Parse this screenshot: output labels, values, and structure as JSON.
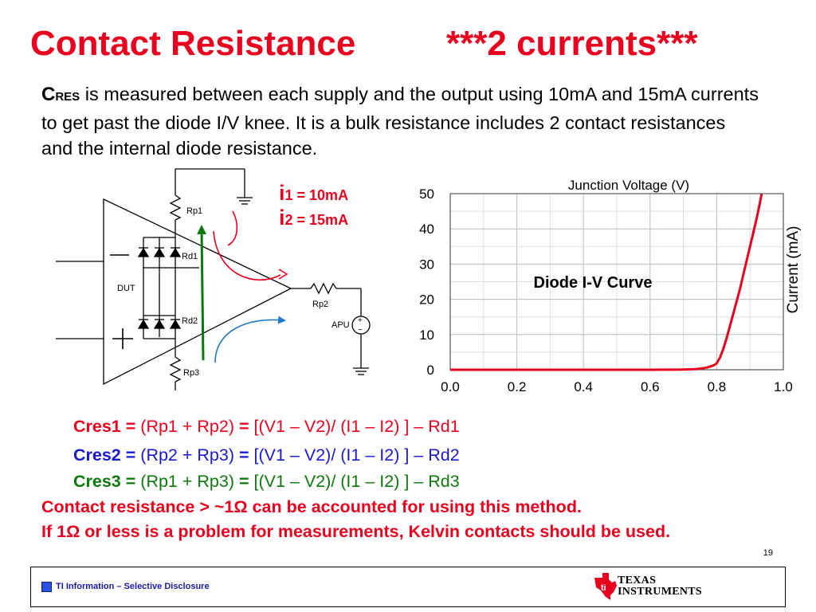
{
  "title": {
    "left": "Contact Resistance",
    "right": "***2 currents***"
  },
  "intro": {
    "cres_big": "C",
    "cres_small": "RES",
    "text": " is measured between each supply and the output using 10mA and 15mA currents to get past the diode I/V knee. It is a bulk resistance includes 2 contact resistances and the internal diode resistance."
  },
  "circuit": {
    "labels": {
      "rp1": "Rp1",
      "rp2": "Rp2",
      "rp3": "Rp3",
      "rd1": "Rd1",
      "rd2": "Rd2",
      "dut": "DUT",
      "apu": "APU",
      "apu_plus": "+",
      "apu_minus": "−",
      "minus_sign": "—",
      "plus_sign": "+"
    },
    "currents": [
      {
        "i": "i",
        "rest": "1 = 10mA"
      },
      {
        "i": "i",
        "rest": "2 = 15mA"
      }
    ],
    "colors": {
      "red_arrow": "#e8001e",
      "blue_arrow": "#1f7acb",
      "green_line": "#0b7a0b"
    }
  },
  "chart_data": {
    "type": "line",
    "title": "Diode I-V Curve",
    "xlabel": "Junction Voltage (V)",
    "ylabel": "Current (mA)",
    "xlim": [
      0.0,
      1.0
    ],
    "ylim": [
      0,
      50
    ],
    "xticks": [
      "0.0",
      "0.2",
      "0.4",
      "0.6",
      "0.8",
      "1.0"
    ],
    "yticks": [
      "0",
      "10",
      "20",
      "30",
      "40",
      "50"
    ],
    "grid": true,
    "series": [
      {
        "color": "#e8001e",
        "x": [
          0.0,
          0.6,
          0.7,
          0.74,
          0.77,
          0.79,
          0.8,
          0.81,
          0.82,
          0.83,
          0.84,
          0.85,
          0.86,
          0.87,
          0.88,
          0.89,
          0.9,
          0.91,
          0.92,
          0.93,
          0.935
        ],
        "y": [
          0,
          0,
          0.05,
          0.2,
          0.6,
          1.2,
          1.8,
          3.5,
          6,
          9,
          12.5,
          16,
          19.5,
          23,
          27,
          31,
          35,
          39,
          43,
          47.5,
          50
        ]
      }
    ]
  },
  "formulas": [
    {
      "label": "Cres1 =",
      "terms": "(Rp1 + Rp2)",
      "eq": "=",
      "expr": "[(V1 – V2)/ (I1 – I2) ] – Rd1",
      "color": "#e8001e"
    },
    {
      "label": "Cres2 =",
      "terms": "(Rp2 + Rp3)",
      "eq": "=",
      "expr": "[(V1 – V2)/ (I1 – I2) ] – Rd2",
      "color": "#1a1acc"
    },
    {
      "label": "Cres3 =",
      "terms": "(Rp1 + Rp3)",
      "eq": "=",
      "expr": "[(V1 – V2)/ (I1 – I2) ] – Rd3",
      "color": "#0b7a0b"
    }
  ],
  "notes": [
    "Contact resistance > ~1Ω can be accounted for using this method.",
    "If 1Ω or less is a problem for measurements, Kelvin contacts should be used."
  ],
  "page_number": "19",
  "footer": {
    "disclosure": "TI Information – Selective Disclosure",
    "logo_line1": "Texas",
    "logo_line2": "Instruments"
  }
}
